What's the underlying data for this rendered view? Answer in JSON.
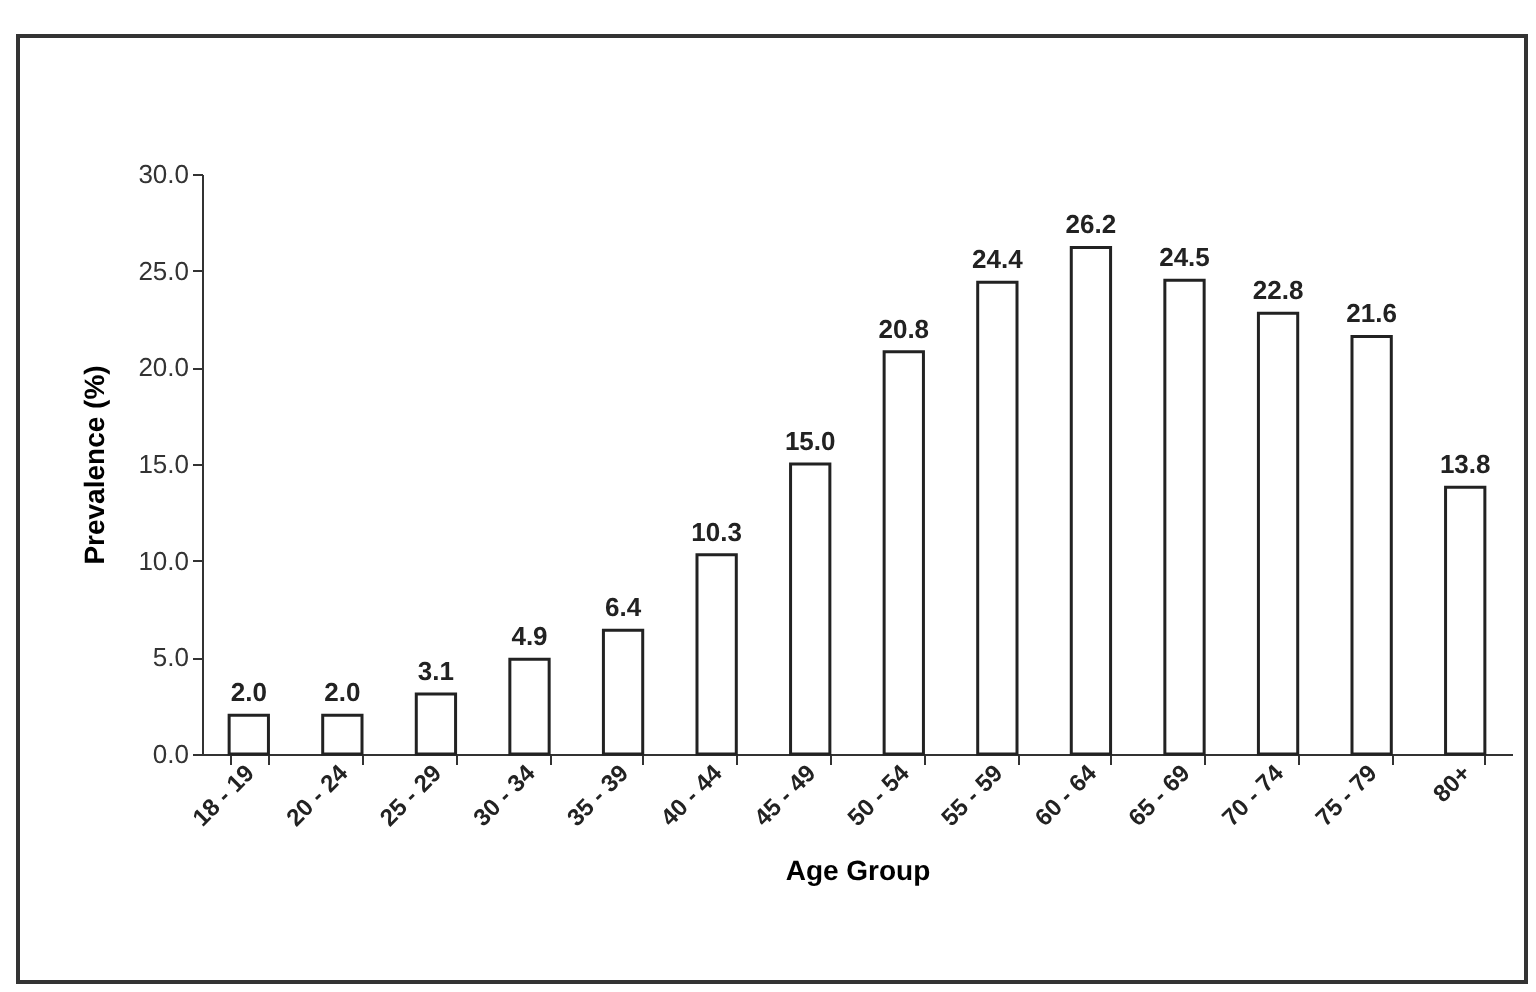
{
  "chart_data": {
    "type": "bar",
    "xlabel": "Age Group",
    "ylabel": "Prevalence (%)",
    "categories": [
      "18 - 19",
      "20 - 24",
      "25 - 29",
      "30 - 34",
      "35 - 39",
      "40 - 44",
      "45 - 49",
      "50 - 54",
      "55 - 59",
      "60 - 64",
      "65 - 69",
      "70 - 74",
      "75 - 79",
      "80+"
    ],
    "values": [
      2.0,
      2.0,
      3.1,
      4.9,
      6.4,
      10.3,
      15.0,
      20.8,
      24.4,
      26.2,
      24.5,
      22.8,
      21.6,
      13.8
    ],
    "value_labels": [
      "2.0",
      "2.0",
      "3.1",
      "4.9",
      "6.4",
      "10.3",
      "15.0",
      "20.8",
      "24.4",
      "26.2",
      "24.5",
      "22.8",
      "21.6",
      "13.8"
    ],
    "color": "#ffffff",
    "ylim": [
      0,
      30
    ],
    "yticks": [
      {
        "value": 0,
        "label": "0.0"
      },
      {
        "value": 5,
        "label": "5.0"
      },
      {
        "value": 10,
        "label": "10.0"
      },
      {
        "value": 15,
        "label": "15.0"
      },
      {
        "value": 20,
        "label": "20.0"
      },
      {
        "value": 25,
        "label": "25.0"
      },
      {
        "value": 30,
        "label": "30.0"
      }
    ],
    "grid": false
  }
}
